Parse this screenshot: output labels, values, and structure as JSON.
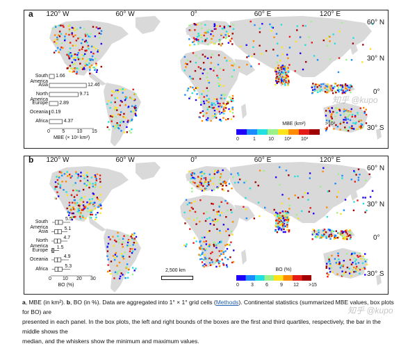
{
  "panels": {
    "a": {
      "label": "a",
      "lon_labels": [
        "120° W",
        "60° W",
        "0°",
        "60° E",
        "120° E"
      ],
      "lat_labels": [
        "60° N",
        "30° N",
        "0°",
        "30° S"
      ],
      "inset": {
        "xlabel": "MBE (× 10⁶ km²)",
        "ticks": [
          "0",
          "5",
          "10",
          "15"
        ],
        "rows": [
          {
            "label": "South America",
            "value": "1.66",
            "v": 1.66
          },
          {
            "label": "Asia",
            "value": "12.46",
            "v": 12.46
          },
          {
            "label": "North America",
            "value": "9.71",
            "v": 9.71
          },
          {
            "label": "Europe",
            "value": "2.89",
            "v": 2.89
          },
          {
            "label": "Oceania",
            "value": "0.19",
            "v": 0.19
          },
          {
            "label": "Africa",
            "value": "4.37",
            "v": 4.37
          }
        ]
      },
      "colorbar": {
        "title": "MBE (km²)",
        "over_label": ">10³",
        "ticks": [
          "0",
          "1",
          "10",
          "10²",
          "10³"
        ],
        "colors": [
          "#1f00ff",
          "#1a8cff",
          "#22e0e0",
          "#9cf28a",
          "#ffe31a",
          "#ff8a00",
          "#e41b17",
          "#a00000"
        ]
      }
    },
    "b": {
      "label": "b",
      "lon_labels": [
        "120° W",
        "60° W",
        "0°",
        "60° E",
        "120° E"
      ],
      "lat_labels": [
        "60° N",
        "30° N",
        "0°",
        "30° S"
      ],
      "inset": {
        "xlabel": "BO (%)",
        "ticks": [
          "0",
          "10",
          "20",
          "30"
        ],
        "rows": [
          {
            "label": "South America",
            "value": "5.5"
          },
          {
            "label": "Asia",
            "value": "5.1"
          },
          {
            "label": "North America",
            "value": "4.7"
          },
          {
            "label": "Europe",
            "value": "1.5"
          },
          {
            "label": "Oceania",
            "value": "4.9"
          },
          {
            "label": "Africa",
            "value": "5.3"
          }
        ]
      },
      "scale_bar": "2,500 km",
      "colorbar": {
        "title": "BO (%)",
        "ticks": [
          "0",
          "3",
          "6",
          "9",
          "12",
          ">15"
        ],
        "colors": [
          "#1f00ff",
          "#1a8cff",
          "#22e0e0",
          "#9cf28a",
          "#ffe31a",
          "#ff8a00",
          "#e41b17",
          "#a00000"
        ]
      }
    }
  },
  "caption": {
    "line1_a": "a",
    "line1_rest": ", MBE (in km²). ",
    "line1_b": "b",
    "line1_rest2": ", BO (in %). Data are aggregated into 1° × 1° grid cells (",
    "methods": "Methods",
    "line1_rest3": "). Continental statistics (summarized MBE values, box plots for BO) are",
    "line2": "presented in each panel. In the box plots, the left and right bounds of the boxes are the first and third quartiles, respectively, the bar in the middle shows the",
    "line3": "median, and the whiskers show the minimum and maximum values."
  },
  "watermark": "知乎 @kupo",
  "colors": {
    "land": "#d9d9d9",
    "ocean": "#ffffff",
    "frame": "#222222"
  }
}
